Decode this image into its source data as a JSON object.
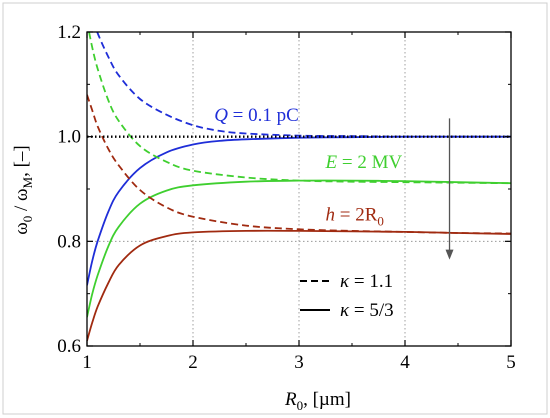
{
  "chart_data": {
    "type": "line",
    "xlabel_main": "R",
    "xlabel_sub": "0",
    "xlabel_unit": ", [µm]",
    "ylabel_main": "ω",
    "ylabel_sub1": "0",
    "ylabel_mid": " / ω",
    "ylabel_sub2": "M",
    "ylabel_unit": ", [–]",
    "xlim": [
      1,
      5
    ],
    "ylim": [
      0.6,
      1.2
    ],
    "x_ticks": [
      "1",
      "2",
      "3",
      "4",
      "5"
    ],
    "y_ticks": [
      "0.6",
      "0.8",
      "1.0",
      "1.2"
    ],
    "grid": "dotted vertical at x = 2, 3, 4; dotted horizontal at y = 0.8 and 1.0",
    "reference_line": {
      "y": 1.0,
      "style": "black dotted"
    },
    "colors": {
      "blue": "#1f2ed8",
      "green": "#3fcf2f",
      "red": "#a02a10",
      "arrow": "#555555"
    },
    "series": [
      {
        "group": "Q",
        "kappa": "1.1",
        "style": "dashed",
        "color": "#1f2ed8",
        "x": [
          1.0,
          1.05,
          1.1,
          1.2,
          1.3,
          1.5,
          1.75,
          2.0,
          2.25,
          2.5,
          3.0,
          3.5,
          4.0,
          4.5,
          5.0
        ],
        "y": [
          1.26,
          1.23,
          1.198,
          1.153,
          1.117,
          1.072,
          1.042,
          1.022,
          1.011,
          1.006,
          1.002,
          1.001,
          1.0,
          1.0,
          1.0
        ]
      },
      {
        "group": "Q",
        "kappa": "5/3",
        "style": "solid",
        "color": "#1f2ed8",
        "x": [
          1.0,
          1.05,
          1.1,
          1.2,
          1.3,
          1.5,
          1.75,
          2.0,
          2.25,
          2.5,
          3.0,
          3.5,
          4.0,
          4.5,
          5.0
        ],
        "y": [
          0.716,
          0.763,
          0.8,
          0.856,
          0.895,
          0.94,
          0.97,
          0.985,
          0.992,
          0.995,
          0.998,
          0.999,
          1.0,
          1.0,
          1.0
        ]
      },
      {
        "group": "E",
        "kappa": "1.1",
        "style": "dashed",
        "color": "#3fcf2f",
        "x": [
          1.0,
          1.05,
          1.1,
          1.2,
          1.3,
          1.5,
          1.75,
          2.0,
          2.5,
          3.0,
          3.5,
          4.0,
          4.5,
          5.0
        ],
        "y": [
          1.22,
          1.17,
          1.13,
          1.07,
          1.03,
          0.982,
          0.952,
          0.935,
          0.922,
          0.916,
          0.914,
          0.913,
          0.912,
          0.911
        ]
      },
      {
        "group": "E",
        "kappa": "5/3",
        "style": "solid",
        "color": "#3fcf2f",
        "x": [
          1.0,
          1.05,
          1.1,
          1.2,
          1.3,
          1.5,
          1.75,
          2.0,
          2.5,
          3.0,
          3.5,
          4.0,
          4.5,
          5.0
        ],
        "y": [
          0.655,
          0.7,
          0.735,
          0.79,
          0.828,
          0.872,
          0.897,
          0.907,
          0.914,
          0.916,
          0.916,
          0.915,
          0.913,
          0.911
        ]
      },
      {
        "group": "h",
        "kappa": "1.1",
        "style": "dashed",
        "color": "#a02a10",
        "x": [
          1.0,
          1.05,
          1.1,
          1.2,
          1.3,
          1.5,
          1.75,
          2.0,
          2.5,
          3.0,
          3.5,
          4.0,
          4.5,
          5.0
        ],
        "y": [
          1.08,
          1.05,
          1.02,
          0.977,
          0.945,
          0.898,
          0.865,
          0.847,
          0.83,
          0.823,
          0.82,
          0.818,
          0.816,
          0.815
        ]
      },
      {
        "group": "h",
        "kappa": "5/3",
        "style": "solid",
        "color": "#a02a10",
        "x": [
          1.0,
          1.05,
          1.1,
          1.2,
          1.3,
          1.5,
          1.75,
          2.0,
          2.5,
          3.0,
          3.5,
          4.0,
          4.5,
          5.0
        ],
        "y": [
          0.61,
          0.645,
          0.675,
          0.72,
          0.755,
          0.792,
          0.81,
          0.817,
          0.82,
          0.82,
          0.819,
          0.818,
          0.816,
          0.814
        ]
      }
    ],
    "annotations": [
      {
        "italic": "Q",
        "text": " = 0.1 pC",
        "sub": "",
        "color": "#1f2ed8",
        "x": 2.2,
        "y": 1.03
      },
      {
        "italic": "E",
        "text": " = 2 MV",
        "sub": "",
        "color": "#3fcf2f",
        "x": 3.25,
        "y": 0.94
      },
      {
        "italic": "h",
        "text": " = 2R",
        "sub": "0",
        "color": "#a02a10",
        "x": 3.25,
        "y": 0.84
      }
    ],
    "trend_arrow": {
      "x": 4.42,
      "y_from": 1.035,
      "y_to": 0.765
    },
    "legend": {
      "position": "bottom-right",
      "entries": [
        {
          "style": "dashed",
          "kappa_symbol": "κ",
          "text": " = 1.1"
        },
        {
          "style": "solid",
          "kappa_symbol": "κ",
          "text": " = 5/3"
        }
      ]
    }
  }
}
